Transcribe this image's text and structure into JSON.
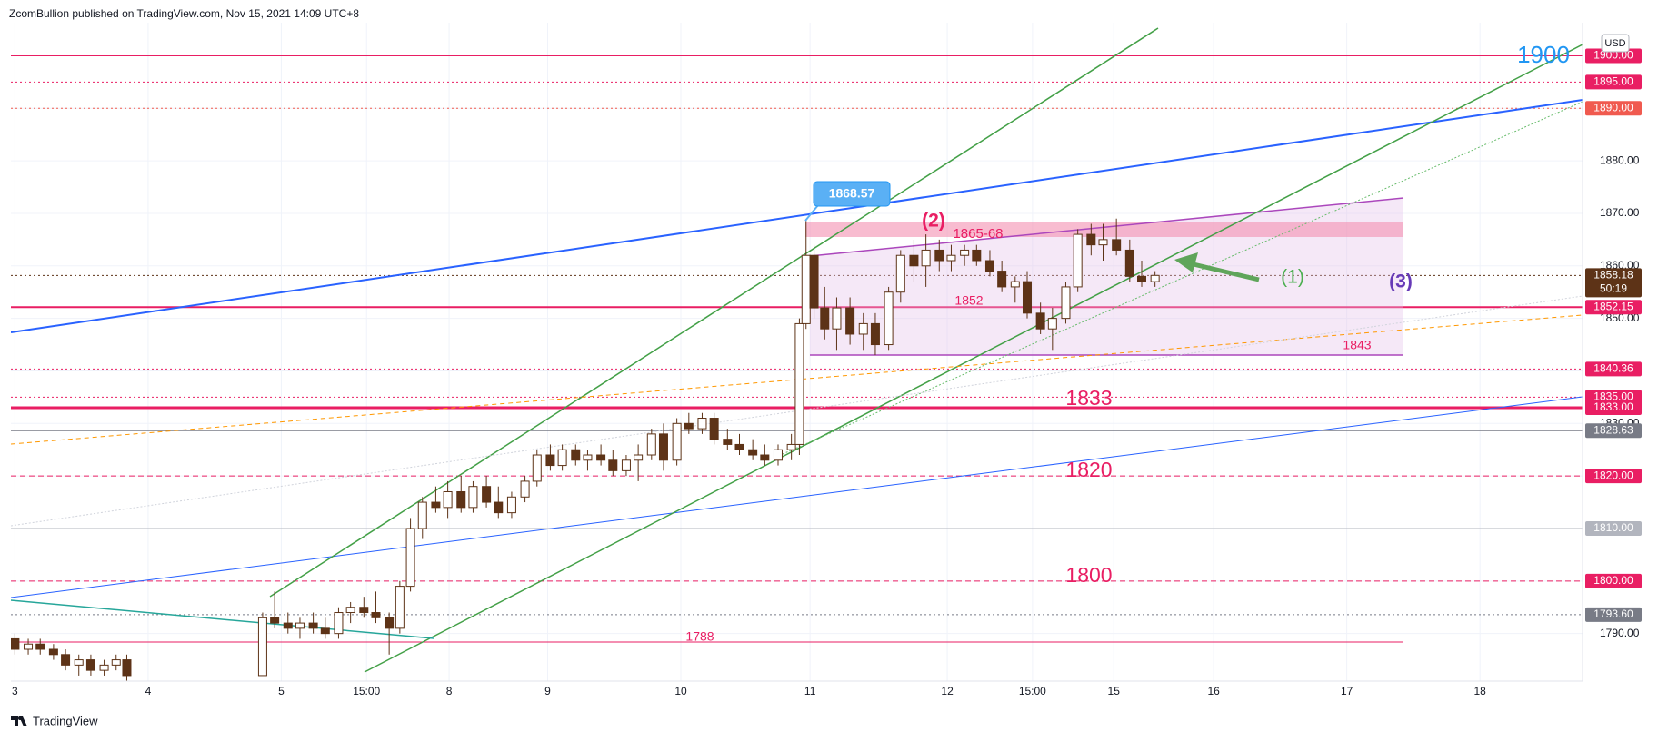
{
  "header": {
    "title": "ZcomBullion published on TradingView.com, Nov 15, 2021 14:09 UTC+8"
  },
  "footer": {
    "brand": "TradingView"
  },
  "chart_data": {
    "type": "candlestick",
    "currency": "USD",
    "up_color": "#ffffff",
    "down_color": "#5d3317",
    "border_color": "#5d3317",
    "grid": true,
    "xlim": [
      2.97,
      14.77
    ],
    "ylim": [
      1780.95,
      1906.3
    ],
    "xticks": [
      3,
      4,
      5,
      {
        "value": 5.64,
        "label": "15:00"
      },
      {
        "value": 6.26,
        "label": "8"
      },
      {
        "value": 7.0,
        "label": "9"
      },
      {
        "value": 8.0,
        "label": "10"
      },
      {
        "value": 8.97,
        "label": "11"
      },
      {
        "value": 10.0,
        "label": "12"
      },
      {
        "value": 10.64,
        "label": "15:00"
      },
      {
        "value": 11.25,
        "label": "15"
      },
      {
        "value": 12.0,
        "label": "16"
      },
      {
        "value": 13.0,
        "label": "17"
      },
      {
        "value": 14.0,
        "label": "18"
      }
    ],
    "yticks": [
      {
        "value": 1790,
        "label": "1790.00"
      },
      {
        "value": 1800,
        "label": "1800.00"
      },
      {
        "value": 1810,
        "label": "1810.00"
      },
      {
        "value": 1820,
        "label": "1820.00"
      },
      {
        "value": 1830,
        "label": "1830.00"
      },
      {
        "value": 1840,
        "label": "1840.00"
      },
      {
        "value": 1850,
        "label": "1850.00"
      },
      {
        "value": 1860,
        "label": "1860.00"
      },
      {
        "value": 1870,
        "label": "1870.00"
      },
      {
        "value": 1880,
        "label": "1880.00"
      },
      {
        "value": 1890,
        "label": "1890.00"
      },
      {
        "value": 1900,
        "label": "1900.00"
      }
    ],
    "x": [
      3.0,
      3.1,
      3.19,
      3.29,
      3.38,
      3.48,
      3.57,
      3.67,
      3.76,
      3.84,
      4.86,
      4.95,
      5.05,
      5.14,
      5.24,
      5.33,
      5.43,
      5.52,
      5.62,
      5.71,
      5.81,
      5.89,
      5.97,
      6.06,
      6.16,
      6.25,
      6.35,
      6.44,
      6.54,
      6.63,
      6.73,
      6.83,
      6.92,
      7.02,
      7.11,
      7.21,
      7.3,
      7.4,
      7.49,
      7.59,
      7.68,
      7.78,
      7.87,
      7.97,
      8.06,
      8.16,
      8.25,
      8.35,
      8.44,
      8.54,
      8.63,
      8.73,
      8.83,
      8.89,
      8.94,
      9.0,
      9.08,
      9.17,
      9.27,
      9.37,
      9.46,
      9.56,
      9.65,
      9.75,
      9.84,
      9.94,
      10.03,
      10.13,
      10.22,
      10.32,
      10.41,
      10.51,
      10.6,
      10.7,
      10.79,
      10.89,
      10.98,
      11.08,
      11.17,
      11.27,
      11.37,
      11.46,
      11.56
    ],
    "open": [
      1789,
      1787,
      1788,
      1787,
      1786,
      1784,
      1785,
      1783,
      1784,
      1785,
      1782,
      1793,
      1792,
      1791,
      1792,
      1791,
      1790,
      1794,
      1795,
      1794,
      1793,
      1791,
      1799,
      1810,
      1815,
      1814,
      1817,
      1814,
      1818,
      1815,
      1813,
      1816,
      1819,
      1824,
      1822,
      1825,
      1823,
      1824,
      1823,
      1821,
      1823,
      1824,
      1828,
      1823,
      1830,
      1829,
      1831,
      1827,
      1826,
      1825,
      1824,
      1823,
      1825,
      1826,
      1849,
      1862,
      1852,
      1848,
      1852,
      1847,
      1849,
      1845,
      1855,
      1862,
      1860,
      1863,
      1861,
      1862,
      1863,
      1861,
      1859,
      1856,
      1857,
      1851,
      1848,
      1850,
      1856,
      1866,
      1864,
      1865,
      1863,
      1858,
      1857
    ],
    "high": [
      1790,
      1789,
      1789,
      1788,
      1787,
      1786,
      1786,
      1785,
      1786,
      1786,
      1794,
      1798,
      1794,
      1793,
      1794,
      1793,
      1795,
      1796,
      1797,
      1798,
      1794,
      1800,
      1812,
      1816,
      1818,
      1819,
      1820,
      1819,
      1820,
      1818,
      1817,
      1820,
      1825,
      1826,
      1826,
      1826,
      1825,
      1826,
      1825,
      1824,
      1826,
      1829,
      1830,
      1831,
      1832,
      1832,
      1832,
      1829,
      1828,
      1827,
      1826,
      1826,
      1828,
      1850,
      1868.57,
      1864,
      1856,
      1854,
      1854,
      1851,
      1851,
      1856,
      1863,
      1865,
      1866,
      1865,
      1864,
      1864,
      1864,
      1863,
      1861,
      1858,
      1859,
      1853,
      1852,
      1857,
      1867,
      1868,
      1868,
      1869,
      1865,
      1861,
      1859
    ],
    "low": [
      1786,
      1786,
      1786,
      1785,
      1783,
      1782,
      1782,
      1782,
      1783,
      1781,
      1782,
      1791,
      1790,
      1789,
      1790,
      1789,
      1789,
      1792,
      1793,
      1792,
      1786,
      1790,
      1798,
      1808,
      1813,
      1812,
      1813,
      1813,
      1814,
      1812,
      1812,
      1815,
      1818,
      1821,
      1821,
      1822,
      1821,
      1822,
      1820,
      1820,
      1819,
      1823,
      1821,
      1822,
      1828,
      1828,
      1826,
      1825,
      1824,
      1823,
      1822,
      1822,
      1823,
      1824,
      1848,
      1850,
      1846,
      1844,
      1845,
      1844,
      1843,
      1844,
      1853,
      1857,
      1856,
      1859,
      1859,
      1860,
      1860,
      1858,
      1855,
      1853,
      1850,
      1847,
      1844,
      1849,
      1855,
      1862,
      1861,
      1862,
      1857,
      1856,
      1856
    ],
    "close": [
      1787,
      1788,
      1787,
      1786,
      1784,
      1785,
      1783,
      1784,
      1785,
      1782,
      1793,
      1792,
      1791,
      1792,
      1791,
      1790,
      1794,
      1795,
      1794,
      1793,
      1791,
      1799,
      1810,
      1815,
      1814,
      1817,
      1814,
      1818,
      1815,
      1813,
      1816,
      1819,
      1824,
      1822,
      1825,
      1823,
      1824,
      1823,
      1821,
      1823,
      1824,
      1828,
      1823,
      1830,
      1829,
      1831,
      1827,
      1826,
      1825,
      1824,
      1823,
      1825,
      1826,
      1849,
      1862,
      1852,
      1848,
      1852,
      1847,
      1849,
      1845,
      1855,
      1862,
      1860,
      1863,
      1861,
      1862,
      1863,
      1861,
      1859,
      1856,
      1857,
      1851,
      1848,
      1850,
      1856,
      1866,
      1864,
      1865,
      1863,
      1858,
      1857,
      1858.18
    ],
    "levels": [
      {
        "value": 1900,
        "label": "1900.00",
        "color": "#e91e63",
        "style": "solid",
        "width": 1
      },
      {
        "value": 1895,
        "label": "1895.00",
        "color": "#e91e63",
        "style": "dotted",
        "width": 1
      },
      {
        "value": 1890,
        "label": "1890.00",
        "color": "#f05a4f",
        "style": "dotted",
        "width": 1
      },
      {
        "value": 1858.18,
        "label": "1858.18",
        "countdown": "50:19",
        "color": "#5d3317",
        "style": "dotted",
        "width": 1
      },
      {
        "value": 1852.15,
        "label": "1852.15",
        "color": "#e91e63",
        "style": "solid",
        "width": 2
      },
      {
        "value": 1840.36,
        "label": "1840.36",
        "color": "#e91e63",
        "style": "dotted",
        "width": 1
      },
      {
        "value": 1835,
        "label": "1835.00",
        "color": "#e91e63",
        "style": "dotted",
        "width": 1
      },
      {
        "value": 1833,
        "label": "1833.00",
        "color": "#e91e63",
        "style": "solid",
        "width": 3
      },
      {
        "value": 1828.63,
        "label": "1828.63",
        "color": "#787b86",
        "style": "solid",
        "width": 1
      },
      {
        "value": 1820,
        "label": "1820.00",
        "color": "#e91e63",
        "style": "dashed",
        "width": 1
      },
      {
        "value": 1810,
        "label": "1810.00",
        "color": "#b2b5be",
        "style": "solid",
        "width": 1
      },
      {
        "value": 1800,
        "label": "1800.00",
        "color": "#e91e63",
        "style": "dashed",
        "width": 1
      },
      {
        "value": 1793.6,
        "label": "1793.60",
        "color": "#787b86",
        "style": "dotted",
        "width": 1
      }
    ],
    "annotations": {
      "top_target": "1900",
      "level_1833": "1833",
      "level_1820": "1820",
      "level_1800": "1800",
      "level_1843": "1843",
      "level_1852": "1852",
      "zone": "1865-68",
      "wave_2": "(2)",
      "wave_1": "(1)",
      "wave_3": "(3)",
      "high_callout": "1868.57",
      "level_1788": "1788"
    }
  }
}
